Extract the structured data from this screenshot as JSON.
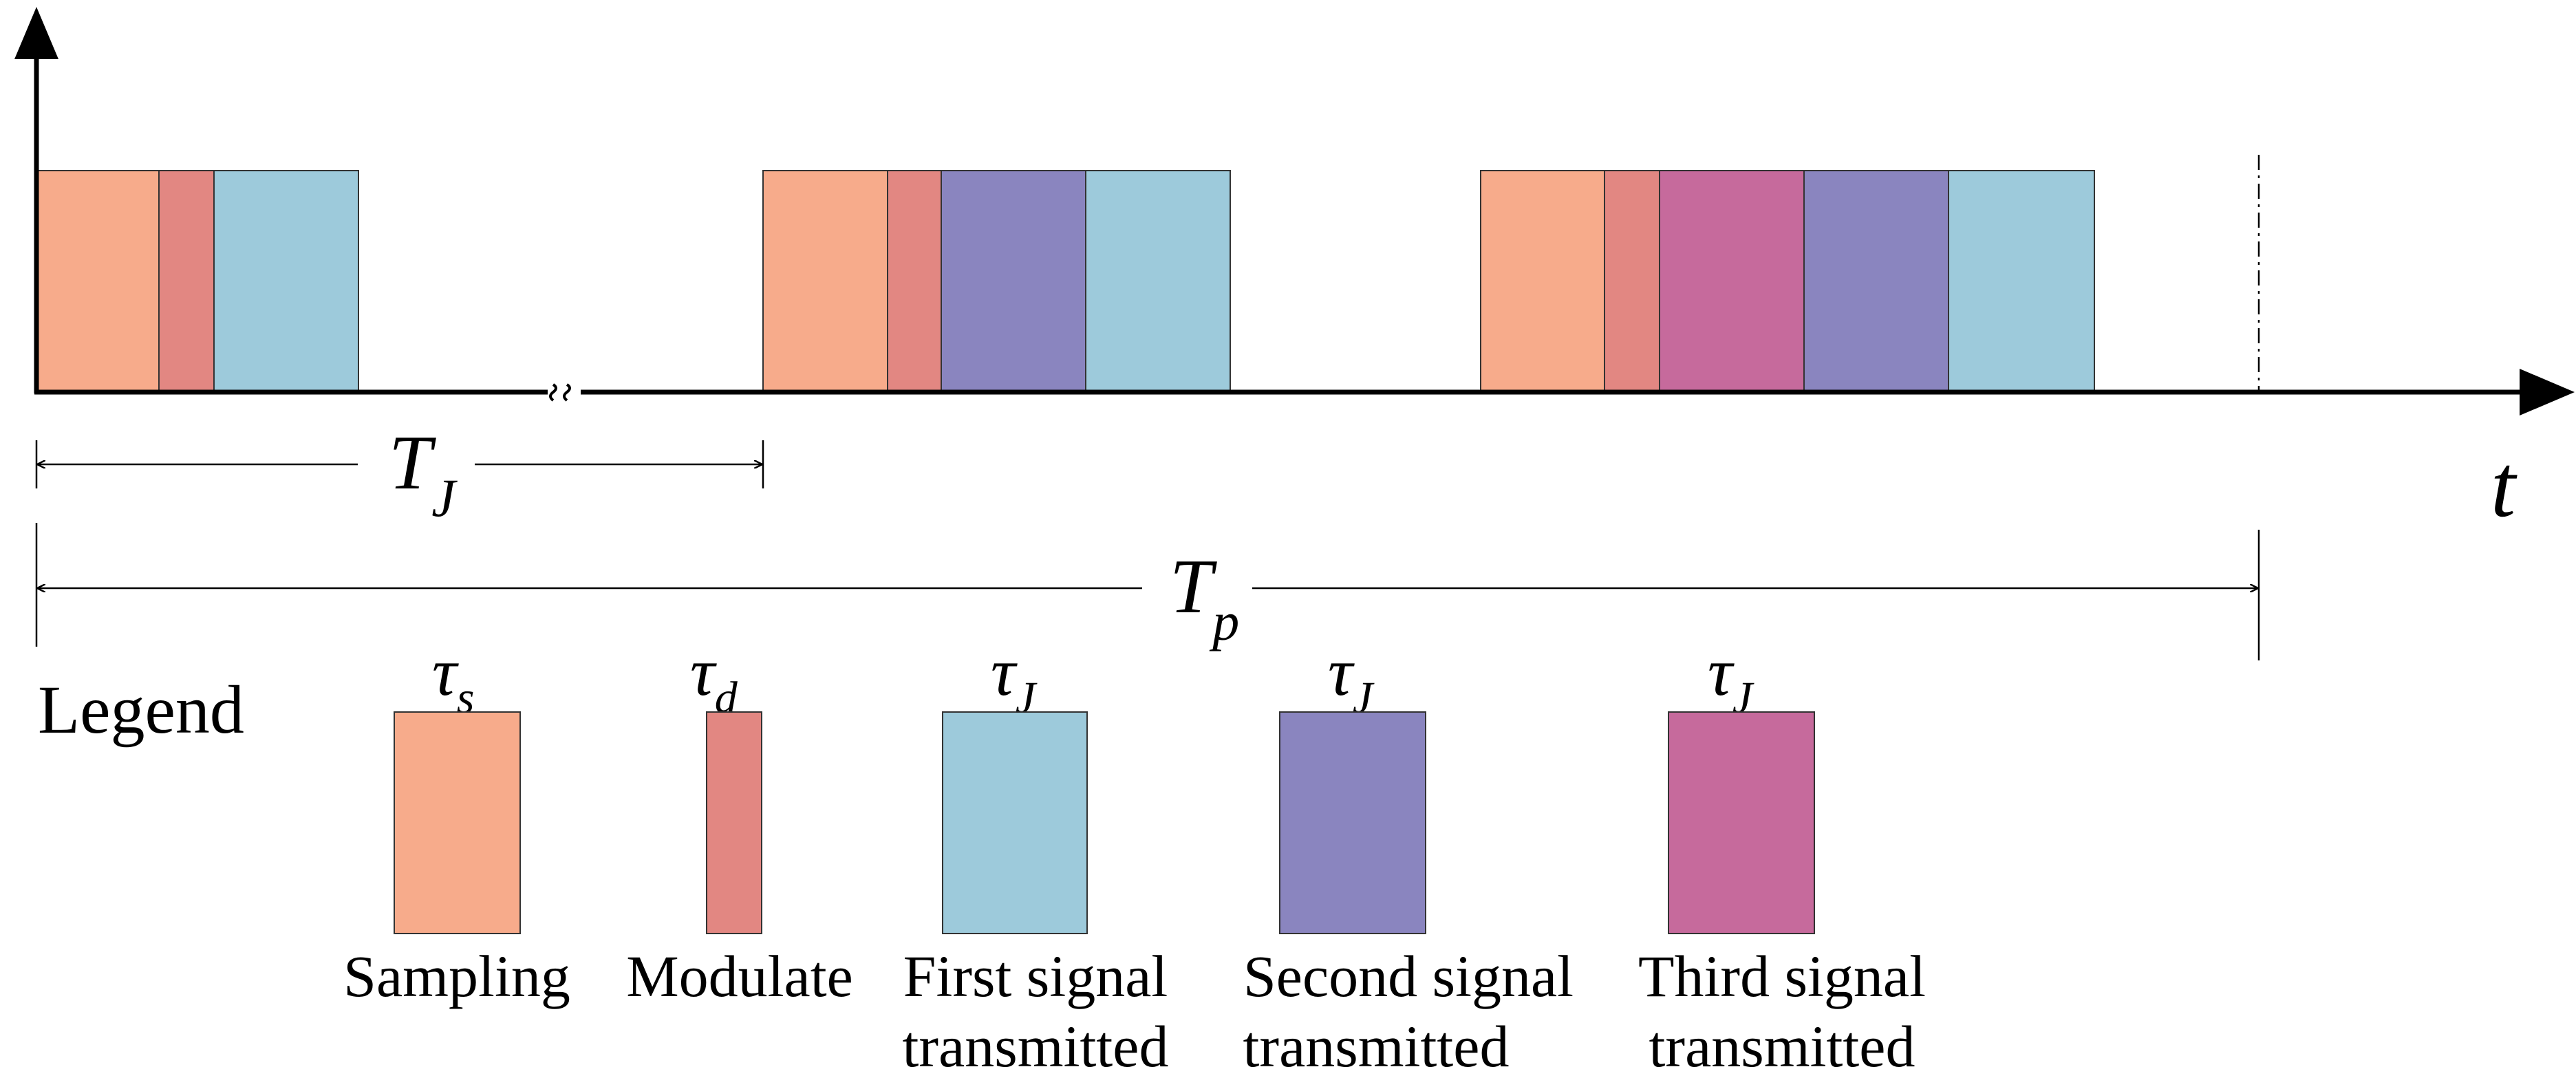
{
  "axis": {
    "t_label": "t"
  },
  "intervals": {
    "tj": {
      "symbol": "T",
      "subscript": "J"
    },
    "tp": {
      "symbol": "T",
      "subscript": "p"
    }
  },
  "legend": {
    "title": "Legend",
    "items": [
      {
        "id": "sampling",
        "symbol": "τ",
        "subscript": "s",
        "line1": "Sampling",
        "line2": "",
        "color": "#F7AB8B"
      },
      {
        "id": "modulate",
        "symbol": "τ",
        "subscript": "d",
        "line1": "Modulate",
        "line2": "",
        "color": "#E28782"
      },
      {
        "id": "first",
        "symbol": "τ",
        "subscript": "J",
        "line1": "First signal",
        "line2": "transmitted",
        "color": "#9DCADB"
      },
      {
        "id": "second",
        "symbol": "τ",
        "subscript": "J",
        "line1": "Second signal",
        "line2": "transmitted",
        "color": "#8A85BF"
      },
      {
        "id": "third",
        "symbol": "τ",
        "subscript": "J",
        "line1": "Third signal",
        "line2": "transmitted",
        "color": "#C66A9C"
      }
    ]
  },
  "colors": {
    "sampling": "#F7AB8B",
    "modulate": "#E28782",
    "first": "#9DCADB",
    "second": "#8A85BF",
    "third": "#C66A9C"
  }
}
